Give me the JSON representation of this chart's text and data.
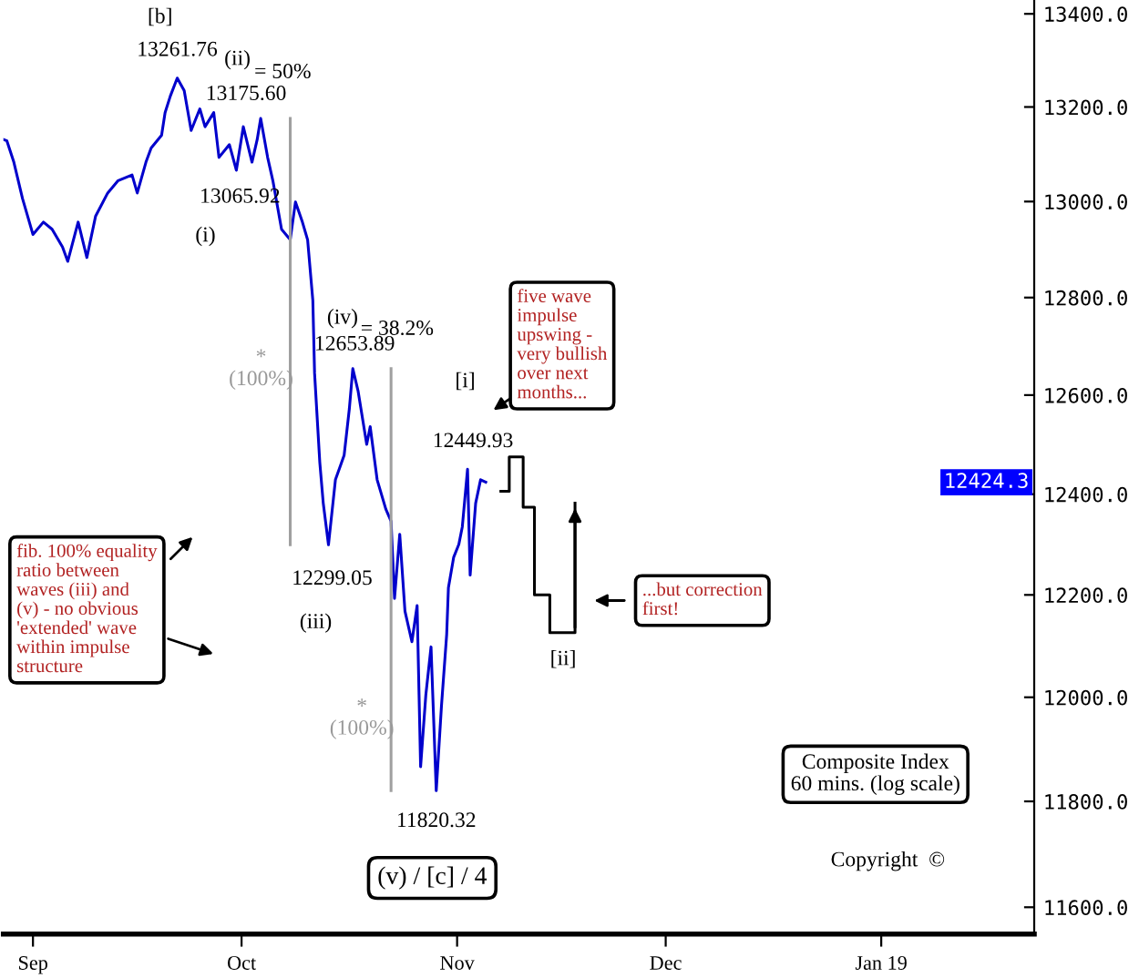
{
  "chart_data": {
    "type": "line",
    "log": "y",
    "xlim": [
      "2018-08-27T18:00",
      "2019-01-23"
    ],
    "xticks": [
      {
        "value": "2018-09-01",
        "label": "Sep"
      },
      {
        "value": "2018-10-01",
        "label": "Oct"
      },
      {
        "value": "2018-11-01",
        "label": "Nov"
      },
      {
        "value": "2018-12-01",
        "label": "Dec"
      },
      {
        "value": "2019-01-01",
        "label": "Jan 19"
      }
    ],
    "ylim": [
      11550,
      13430
    ],
    "yticks": [
      {
        "value": 11600,
        "label": "11600.0"
      },
      {
        "value": 11800,
        "label": "11800.0"
      },
      {
        "value": 12000,
        "label": "12000.0"
      },
      {
        "value": 12200,
        "label": "12200.0"
      },
      {
        "value": 12400,
        "label": "12400.0"
      },
      {
        "value": 12600,
        "label": "12600.0"
      },
      {
        "value": 12800,
        "label": "12800.0"
      },
      {
        "value": 13000,
        "label": "13000.0"
      },
      {
        "value": 13200,
        "label": "13200.0"
      },
      {
        "value": 13400,
        "label": "13400.0"
      }
    ],
    "grid": false,
    "series": [
      {
        "color": "#0000cc",
        "x": [
          "2018-08-27T18:00",
          "2018-08-28T06:00",
          "2018-08-29T06:00",
          "2018-08-30T12:00",
          "2018-09-01T00:00",
          "2018-09-02T12:00",
          "2018-09-03T18:00",
          "2018-09-05T06:00",
          "2018-09-06T00:00",
          "2018-09-07T12:00",
          "2018-09-08T18:00",
          "2018-09-10T00:00",
          "2018-09-11T18:00",
          "2018-09-13T06:00",
          "2018-09-15T06:00",
          "2018-09-16T00:00",
          "2018-09-17T06:00",
          "2018-09-18T00:00",
          "2018-09-19T12:00",
          "2018-09-20T00:00",
          "2018-09-20T18:00",
          "2018-09-21T18:00",
          "2018-09-22T18:00",
          "2018-09-23T18:00",
          "2018-09-25T00:00",
          "2018-09-25T18:00",
          "2018-09-27T00:00",
          "2018-09-27T18:00",
          "2018-09-29T06:00",
          "2018-09-30T06:00",
          "2018-10-01T06:00",
          "2018-10-02T12:00",
          "2018-10-03T06:00",
          "2018-10-03T18:00",
          "2018-10-04T18:00",
          "2018-10-05T12:00",
          "2018-10-06T18:00",
          "2018-10-08T00:00",
          "2018-10-08T18:00",
          "2018-10-09T18:00",
          "2018-10-10T12:00",
          "2018-10-11T06:00",
          "2018-10-11T12:00",
          "2018-10-12T06:00",
          "2018-10-12T18:00",
          "2018-10-13T12:00",
          "2018-10-14T12:00",
          "2018-10-15T18:00",
          "2018-10-16T12:00",
          "2018-10-17T00:00",
          "2018-10-17T18:00",
          "2018-10-19T00:00",
          "2018-10-19T12:00",
          "2018-10-20T12:00",
          "2018-10-21T18:00",
          "2018-10-22T12:00",
          "2018-10-23T00:00",
          "2018-10-23T18:00",
          "2018-10-24T12:00",
          "2018-10-25T12:00",
          "2018-10-26T06:00",
          "2018-10-26T18:00",
          "2018-10-27T12:00",
          "2018-10-28T06:00",
          "2018-10-29T00:00",
          "2018-10-29T18:00",
          "2018-10-30T12:00",
          "2018-10-30T18:00",
          "2018-10-31T12:00",
          "2018-11-01T06:00",
          "2018-11-01T18:00",
          "2018-11-02T12:00",
          "2018-11-02T21:00",
          "2018-11-03T16:00",
          "2018-11-04T09:00",
          "2018-11-05T03:00"
        ],
        "values": [
          13131,
          13128,
          13083,
          13006,
          12931,
          12957,
          12942,
          12905,
          12875,
          12957,
          12883,
          12969,
          13018,
          13044,
          13056,
          13018,
          13083,
          13113,
          13140,
          13188,
          13223,
          13261.76,
          13235,
          13150,
          13196,
          13158,
          13188,
          13093,
          13120,
          13065.92,
          13158,
          13083,
          13131,
          13175.6,
          13093,
          13044,
          12942,
          12920,
          12999,
          12957,
          12920,
          12794,
          12645,
          12464,
          12382,
          12299.05,
          12429,
          12478,
          12572,
          12653.89,
          12609,
          12500,
          12536,
          12429,
          12370,
          12346,
          12193,
          12320,
          12168,
          12108,
          12179,
          11866,
          12004,
          12098,
          11820.32,
          11983,
          12122,
          12214,
          12274,
          12300,
          12335,
          12449.93,
          12239,
          12382,
          12429,
          12424
        ]
      },
      {
        "color": "#000000",
        "x": [
          "2018-11-07T07:00",
          "2018-11-08T12:00",
          "2018-11-08T12:00",
          "2018-11-10T12:00",
          "2018-11-10T12:00",
          "2018-11-12T03:00",
          "2018-11-12T03:00",
          "2018-11-14T08:00",
          "2018-11-14T08:00",
          "2018-11-17T23:00",
          "2018-11-17T23:00"
        ],
        "values": [
          12406,
          12406,
          12475,
          12475,
          12374,
          12374,
          12200,
          12200,
          12126,
          12126,
          12382
        ]
      },
      {
        "color": "#a0a0a0",
        "x": [
          "2018-10-08T00:00",
          "2018-10-08T00:00"
        ],
        "values": [
          13175.6,
          12299.05
        ]
      },
      {
        "color": "#a0a0a0",
        "x": [
          "2018-10-22T12:00",
          "2018-10-22T12:00"
        ],
        "values": [
          12653.89,
          11820.32
        ]
      }
    ],
    "annotations": [
      "[b]",
      {
        "text": "13261.76",
        "x": "2018-09-21T18:00",
        "y": 13261.76
      },
      "(ii)",
      "= 50%",
      {
        "text": "13175.60",
        "x": "2018-10-03T18:00",
        "y": 13175.6
      },
      {
        "text": "13065.92",
        "x": "2018-09-30T06:00",
        "y": 13065.92
      },
      "(i)",
      "(iv)",
      "= 38.2%",
      {
        "text": "12653.89",
        "x": "2018-10-17T00:00",
        "y": 12653.89
      },
      {
        "text": "*\n(100%)",
        "x": "2018-10-08T00:00",
        "y": 12653
      },
      {
        "text": "12299.05",
        "x": "2018-10-13T12:00",
        "y": 12299.05
      },
      "(iii)",
      {
        "text": "*\n(100%)",
        "x": "2018-10-22T12:00",
        "y": 11959
      },
      {
        "text": "11820.32",
        "x": "2018-10-29T00:00",
        "y": 11820.32
      },
      "(v) / [c] / 4",
      "[i]",
      {
        "text": "12449.93",
        "x": "2018-11-02T12:00",
        "y": 12449.93
      },
      {
        "text": "[ii]",
        "x": "2018-11-16T06:00",
        "y": 12126
      },
      "five wave\nimpulse\nupswing -\nvery bullish\nover next\nmonths...",
      "...but correction\nfirst!",
      "fib. 100% equality\nratio between\nwaves (iii) and\n(v) - no obvious\n'extended' wave\nwithin impulse\nstructure",
      "Composite Index\n60 mins. (log scale)",
      "Copyright  ©",
      "12424.3"
    ]
  }
}
